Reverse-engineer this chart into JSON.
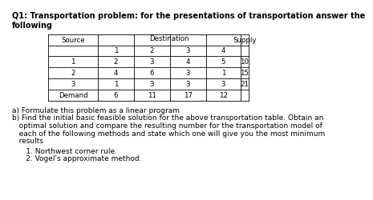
{
  "title_line1": "Q1: Transportation problem: for the presentations of transportation answer the",
  "title_line2": "following",
  "title_fontsize": 7.0,
  "title_fontweight": "bold",
  "table_data": [
    [
      2,
      3,
      4,
      5,
      10
    ],
    [
      4,
      6,
      3,
      1,
      15
    ],
    [
      1,
      3,
      3,
      3,
      21
    ]
  ],
  "demand_row": [
    6,
    11,
    17,
    12
  ],
  "source_nums": [
    "1",
    "2",
    "3"
  ],
  "dest_nums": [
    "1",
    "2",
    "3",
    "4"
  ],
  "text_a": "a) Formulate this problem as a linear program",
  "text_b1": "b) Find the initial basic feasible solution for the above transportation table. Obtain an",
  "text_b2": "   optimal solution and compare the resulting number for the transportation model of",
  "text_b3": "   each of the following methods and state which one will give you the most minimum",
  "text_b4": "   results",
  "text_m1": "      1. Northwest corner rule.",
  "text_m2": "      2. Vogel's approximate method.",
  "font_size_body": 6.5,
  "font_size_table": 6.2,
  "bg_color": "#ffffff"
}
